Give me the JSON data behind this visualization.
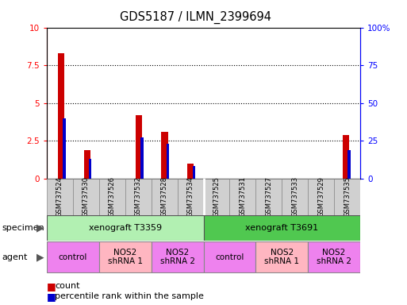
{
  "title": "GDS5187 / ILMN_2399694",
  "samples": [
    "GSM737524",
    "GSM737530",
    "GSM737526",
    "GSM737532",
    "GSM737528",
    "GSM737534",
    "GSM737525",
    "GSM737531",
    "GSM737527",
    "GSM737533",
    "GSM737529",
    "GSM737535"
  ],
  "count_values": [
    8.3,
    1.9,
    0.0,
    4.2,
    3.1,
    1.0,
    0.0,
    0.0,
    0.0,
    0.0,
    0.0,
    2.9
  ],
  "percentile_values": [
    40,
    13,
    0,
    27,
    23,
    8,
    0,
    0,
    0,
    0,
    0,
    19
  ],
  "ylim_left": [
    0,
    10
  ],
  "ylim_right": [
    0,
    100
  ],
  "yticks_left": [
    0,
    2.5,
    5.0,
    7.5,
    10
  ],
  "yticks_right": [
    0,
    25,
    50,
    75,
    100
  ],
  "ytick_labels_left": [
    "0",
    "2.5",
    "5",
    "7.5",
    "10"
  ],
  "ytick_labels_right": [
    "0",
    "25",
    "50",
    "75",
    "100%"
  ],
  "specimen_groups": [
    {
      "label": "xenograft T3359",
      "start": 0,
      "end": 6,
      "color": "#B2F0B2"
    },
    {
      "label": "xenograft T3691",
      "start": 6,
      "end": 12,
      "color": "#50C850"
    }
  ],
  "agent_groups": [
    {
      "label": "control",
      "start": 0,
      "end": 2,
      "color": "#EE82EE"
    },
    {
      "label": "NOS2\nshRNA 1",
      "start": 2,
      "end": 4,
      "color": "#FFB6C1"
    },
    {
      "label": "NOS2\nshRNA 2",
      "start": 4,
      "end": 6,
      "color": "#EE82EE"
    },
    {
      "label": "control",
      "start": 6,
      "end": 8,
      "color": "#EE82EE"
    },
    {
      "label": "NOS2\nshRNA 1",
      "start": 8,
      "end": 10,
      "color": "#FFB6C1"
    },
    {
      "label": "NOS2\nshRNA 2",
      "start": 10,
      "end": 12,
      "color": "#EE82EE"
    }
  ],
  "bar_color_count": "#CC0000",
  "bar_color_percentile": "#0000CC",
  "bar_width": 0.25,
  "legend_items": [
    {
      "label": "count",
      "color": "#CC0000"
    },
    {
      "label": "percentile rank within the sample",
      "color": "#0000CC"
    }
  ]
}
